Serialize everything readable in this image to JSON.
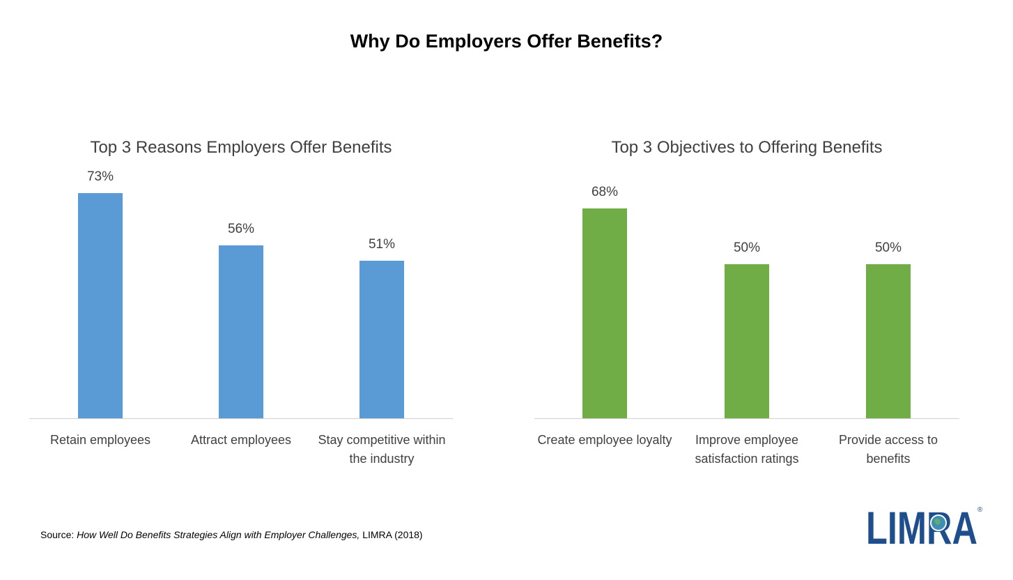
{
  "title": "Why Do Employers Offer Benefits?",
  "chart_data": [
    {
      "type": "bar",
      "title": "Top 3 Reasons Employers Offer Benefits",
      "categories": [
        "Retain employees",
        "Attract employees",
        "Stay competitive within the industry"
      ],
      "values": [
        73,
        56,
        51
      ],
      "data_labels": [
        "73%",
        "56%",
        "51%"
      ],
      "color": "#5b9bd5",
      "ylim": [
        0,
        100
      ],
      "grid": false
    },
    {
      "type": "bar",
      "title": "Top 3 Objectives to Offering Benefits",
      "categories": [
        "Create employee loyalty",
        "Improve employee satisfaction ratings",
        "Provide access to benefits"
      ],
      "values": [
        68,
        50,
        50
      ],
      "data_labels": [
        "68%",
        "50%",
        "50%"
      ],
      "color": "#70ad47",
      "ylim": [
        0,
        100
      ],
      "grid": false
    }
  ],
  "source": {
    "prefix": "Source: ",
    "title": "How Well Do Benefits Strategies Align with Employer Challenges,",
    "suffix": " LIMRA (2018)"
  },
  "logo": {
    "text": "LIMRA",
    "mark": "®",
    "color": "#1f4e8c"
  }
}
